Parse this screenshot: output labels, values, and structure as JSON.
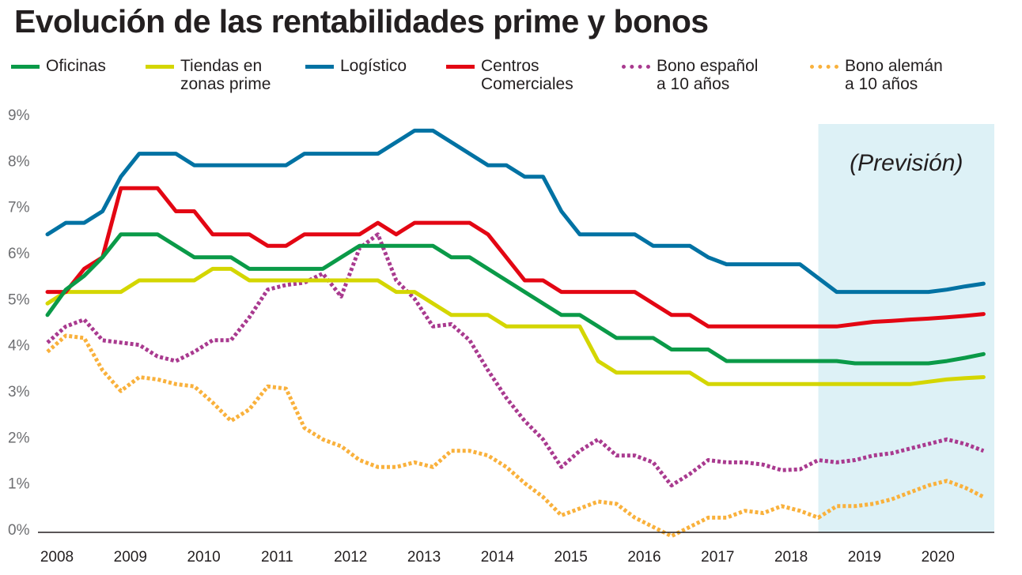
{
  "chart_data": {
    "type": "line",
    "title": "Evolución de las rentabilidades prime y bonos",
    "ylim": [
      0,
      9
    ],
    "xlim": [
      2008,
      2020.8
    ],
    "yticks": [
      "0%",
      "1%",
      "2%",
      "3%",
      "4%",
      "5%",
      "6%",
      "7%",
      "8%",
      "9%"
    ],
    "xticks": [
      "2008",
      "2009",
      "2010",
      "2011",
      "2012",
      "2013",
      "2014",
      "2015",
      "2016",
      "2017",
      "2018",
      "2019",
      "2020"
    ],
    "forecast": {
      "label": "(Previsión)",
      "from": 2018.5,
      "to": 2020.9,
      "color": "#ddf1f6"
    },
    "legend_position": "top",
    "series": [
      {
        "name": "Oficinas",
        "color": "#0a9a48",
        "style": "solid",
        "x": [
          2008,
          2008.25,
          2008.5,
          2008.75,
          2009,
          2009.25,
          2009.5,
          2009.75,
          2010,
          2010.25,
          2010.5,
          2010.75,
          2011,
          2011.25,
          2011.5,
          2011.75,
          2012,
          2012.25,
          2012.5,
          2012.75,
          2013,
          2013.25,
          2013.5,
          2013.75,
          2014,
          2014.25,
          2014.5,
          2014.75,
          2015,
          2015.25,
          2015.5,
          2015.75,
          2016,
          2016.25,
          2016.5,
          2016.75,
          2017,
          2017.25,
          2017.5,
          2017.75,
          2018,
          2018.25,
          2018.5,
          2018.75,
          2019,
          2019.25,
          2019.5,
          2019.75,
          2020,
          2020.25,
          2020.5,
          2020.75
        ],
        "values": [
          4.65,
          5.2,
          5.5,
          5.9,
          6.4,
          6.4,
          6.4,
          6.15,
          5.9,
          5.9,
          5.9,
          5.65,
          5.65,
          5.65,
          5.65,
          5.65,
          5.9,
          6.15,
          6.15,
          6.15,
          6.15,
          6.15,
          5.9,
          5.9,
          5.65,
          5.4,
          5.15,
          4.9,
          4.65,
          4.65,
          4.4,
          4.15,
          4.15,
          4.15,
          3.9,
          3.9,
          3.9,
          3.65,
          3.65,
          3.65,
          3.65,
          3.65,
          3.65,
          3.65,
          3.6,
          3.6,
          3.6,
          3.6,
          3.6,
          3.65,
          3.72,
          3.8
        ]
      },
      {
        "name": "Tiendas en\nzonas prime",
        "color": "#d4d600",
        "style": "solid",
        "x": [
          2008,
          2008.25,
          2008.5,
          2008.75,
          2009,
          2009.25,
          2009.5,
          2009.75,
          2010,
          2010.25,
          2010.5,
          2010.75,
          2011,
          2011.25,
          2011.5,
          2011.75,
          2012,
          2012.25,
          2012.5,
          2012.75,
          2013,
          2013.25,
          2013.5,
          2013.75,
          2014,
          2014.25,
          2014.5,
          2014.75,
          2015,
          2015.25,
          2015.5,
          2015.75,
          2016,
          2016.25,
          2016.5,
          2016.75,
          2017,
          2017.25,
          2017.5,
          2017.75,
          2018,
          2018.25,
          2018.5,
          2018.75,
          2019,
          2019.25,
          2019.5,
          2019.75,
          2020,
          2020.25,
          2020.5,
          2020.75
        ],
        "values": [
          4.9,
          5.15,
          5.15,
          5.15,
          5.15,
          5.4,
          5.4,
          5.4,
          5.4,
          5.65,
          5.65,
          5.4,
          5.4,
          5.4,
          5.4,
          5.4,
          5.4,
          5.4,
          5.4,
          5.15,
          5.15,
          4.9,
          4.65,
          4.65,
          4.65,
          4.4,
          4.4,
          4.4,
          4.4,
          4.4,
          3.65,
          3.4,
          3.4,
          3.4,
          3.4,
          3.4,
          3.15,
          3.15,
          3.15,
          3.15,
          3.15,
          3.15,
          3.15,
          3.15,
          3.15,
          3.15,
          3.15,
          3.15,
          3.2,
          3.25,
          3.28,
          3.3
        ]
      },
      {
        "name": "Logístico",
        "color": "#0072a3",
        "style": "solid",
        "x": [
          2008,
          2008.25,
          2008.5,
          2008.75,
          2009,
          2009.25,
          2009.5,
          2009.75,
          2010,
          2010.25,
          2010.5,
          2010.75,
          2011,
          2011.25,
          2011.5,
          2011.75,
          2012,
          2012.25,
          2012.5,
          2012.75,
          2013,
          2013.25,
          2013.5,
          2013.75,
          2014,
          2014.25,
          2014.5,
          2014.75,
          2015,
          2015.25,
          2015.5,
          2015.75,
          2016,
          2016.25,
          2016.5,
          2016.75,
          2017,
          2017.25,
          2017.5,
          2017.75,
          2018,
          2018.25,
          2018.5,
          2018.75,
          2019,
          2019.25,
          2019.5,
          2019.75,
          2020,
          2020.25,
          2020.5,
          2020.75
        ],
        "values": [
          6.4,
          6.65,
          6.65,
          6.9,
          7.65,
          8.15,
          8.15,
          8.15,
          7.9,
          7.9,
          7.9,
          7.9,
          7.9,
          7.9,
          8.15,
          8.15,
          8.15,
          8.15,
          8.15,
          8.4,
          8.65,
          8.65,
          8.4,
          8.15,
          7.9,
          7.9,
          7.65,
          7.65,
          6.9,
          6.4,
          6.4,
          6.4,
          6.4,
          6.15,
          6.15,
          6.15,
          5.9,
          5.75,
          5.75,
          5.75,
          5.75,
          5.75,
          5.45,
          5.15,
          5.15,
          5.15,
          5.15,
          5.15,
          5.15,
          5.2,
          5.27,
          5.33
        ]
      },
      {
        "name": "Centros\nComerciales",
        "color": "#e30613",
        "style": "solid",
        "x": [
          2008,
          2008.25,
          2008.5,
          2008.75,
          2009,
          2009.25,
          2009.5,
          2009.75,
          2010,
          2010.25,
          2010.5,
          2010.75,
          2011,
          2011.25,
          2011.5,
          2011.75,
          2012,
          2012.25,
          2012.5,
          2012.75,
          2013,
          2013.25,
          2013.5,
          2013.75,
          2014,
          2014.25,
          2014.5,
          2014.75,
          2015,
          2015.25,
          2015.5,
          2015.75,
          2016,
          2016.25,
          2016.5,
          2016.75,
          2017,
          2017.25,
          2017.5,
          2017.75,
          2018,
          2018.25,
          2018.5,
          2018.75,
          2019,
          2019.25,
          2019.5,
          2019.75,
          2020,
          2020.25,
          2020.5,
          2020.75
        ],
        "values": [
          5.15,
          5.15,
          5.65,
          5.9,
          7.4,
          7.4,
          7.4,
          6.9,
          6.9,
          6.4,
          6.4,
          6.4,
          6.15,
          6.15,
          6.4,
          6.4,
          6.4,
          6.4,
          6.65,
          6.4,
          6.65,
          6.65,
          6.65,
          6.65,
          6.4,
          5.9,
          5.4,
          5.4,
          5.15,
          5.15,
          5.15,
          5.15,
          5.15,
          4.9,
          4.65,
          4.65,
          4.4,
          4.4,
          4.4,
          4.4,
          4.4,
          4.4,
          4.4,
          4.4,
          4.45,
          4.5,
          4.52,
          4.55,
          4.57,
          4.6,
          4.63,
          4.67
        ]
      },
      {
        "name": "Bono español\na 10 años",
        "color": "#a93a8f",
        "style": "dotted",
        "x": [
          2008,
          2008.25,
          2008.5,
          2008.75,
          2009,
          2009.25,
          2009.5,
          2009.75,
          2010,
          2010.25,
          2010.5,
          2010.75,
          2011,
          2011.25,
          2011.5,
          2011.75,
          2012,
          2012.25,
          2012.5,
          2012.75,
          2013,
          2013.25,
          2013.5,
          2013.75,
          2014,
          2014.25,
          2014.5,
          2014.75,
          2015,
          2015.25,
          2015.5,
          2015.75,
          2016,
          2016.25,
          2016.5,
          2016.75,
          2017,
          2017.25,
          2017.5,
          2017.75,
          2018,
          2018.25,
          2018.5,
          2018.75,
          2019,
          2019.25,
          2019.5,
          2019.75,
          2020,
          2020.25,
          2020.5,
          2020.75
        ],
        "values": [
          4.05,
          4.4,
          4.55,
          4.1,
          4.05,
          4.0,
          3.75,
          3.65,
          3.85,
          4.1,
          4.1,
          4.6,
          5.2,
          5.3,
          5.35,
          5.55,
          5.05,
          6.1,
          6.4,
          5.4,
          5.0,
          4.4,
          4.45,
          4.1,
          3.45,
          2.85,
          2.35,
          1.95,
          1.35,
          1.7,
          1.95,
          1.6,
          1.6,
          1.45,
          0.95,
          1.2,
          1.5,
          1.45,
          1.45,
          1.4,
          1.28,
          1.3,
          1.5,
          1.45,
          1.5,
          1.6,
          1.65,
          1.75,
          1.85,
          1.95,
          1.85,
          1.7
        ]
      },
      {
        "name": "Bono alemán\na 10 años",
        "color": "#f9b13c",
        "style": "dotted",
        "x": [
          2008,
          2008.25,
          2008.5,
          2008.75,
          2009,
          2009.25,
          2009.5,
          2009.75,
          2010,
          2010.25,
          2010.5,
          2010.75,
          2011,
          2011.25,
          2011.5,
          2011.75,
          2012,
          2012.25,
          2012.5,
          2012.75,
          2013,
          2013.25,
          2013.5,
          2013.75,
          2014,
          2014.25,
          2014.5,
          2014.75,
          2015,
          2015.25,
          2015.5,
          2015.75,
          2016,
          2016.25,
          2016.5,
          2016.75,
          2017,
          2017.25,
          2017.5,
          2017.75,
          2018,
          2018.25,
          2018.5,
          2018.75,
          2019,
          2019.25,
          2019.5,
          2019.75,
          2020,
          2020.25,
          2020.5,
          2020.75
        ],
        "values": [
          3.85,
          4.2,
          4.15,
          3.45,
          3.0,
          3.3,
          3.25,
          3.15,
          3.1,
          2.75,
          2.35,
          2.6,
          3.1,
          3.05,
          2.2,
          1.95,
          1.8,
          1.5,
          1.35,
          1.35,
          1.45,
          1.35,
          1.7,
          1.7,
          1.6,
          1.35,
          1.0,
          0.7,
          0.3,
          0.45,
          0.6,
          0.55,
          0.25,
          0.05,
          -0.15,
          0.05,
          0.25,
          0.25,
          0.4,
          0.35,
          0.5,
          0.4,
          0.25,
          0.5,
          0.5,
          0.55,
          0.65,
          0.8,
          0.95,
          1.05,
          0.9,
          0.7
        ]
      }
    ]
  }
}
